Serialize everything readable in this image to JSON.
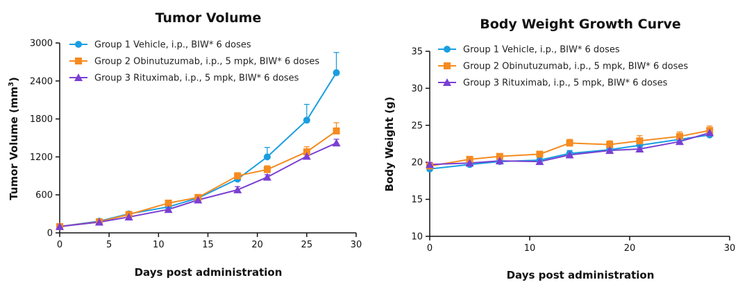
{
  "chart_data": [
    {
      "type": "line",
      "title": "Tumor Volume",
      "xlabel": "Days post administration",
      "ylabel": "Tumor Volume (mm",
      "ylabel_sup": "3",
      "ylabel_end": ")",
      "xlim": [
        0,
        30
      ],
      "ylim": [
        0,
        3000
      ],
      "xticks": [
        0,
        5,
        10,
        15,
        20,
        25,
        30
      ],
      "yticks": [
        0,
        600,
        1200,
        1800,
        2400,
        3000
      ],
      "grid": false,
      "legend_position": "top-left",
      "x": [
        0,
        4,
        7,
        11,
        14,
        18,
        21,
        25,
        28
      ],
      "series": [
        {
          "name": "Group 1 Vehicle, i.p., BIW* 6 doses",
          "color": "#1a9ee0",
          "marker": "circle",
          "values": [
            100,
            185,
            300,
            410,
            550,
            850,
            1200,
            1780,
            2530
          ],
          "errors": [
            15,
            20,
            25,
            30,
            35,
            50,
            150,
            250,
            320
          ]
        },
        {
          "name": "Group 2 Obinutuzumab, i.p., 5 mpk, BIW* 6 doses",
          "color": "#f58b1f",
          "marker": "square",
          "values": [
            100,
            175,
            290,
            470,
            560,
            900,
            1000,
            1280,
            1610
          ],
          "errors": [
            10,
            15,
            20,
            25,
            30,
            50,
            60,
            80,
            130
          ]
        },
        {
          "name": "Group 3 Rituximab, i.p., 5 mpk, BIW* 6 doses",
          "color": "#7b3fd3",
          "marker": "triangle",
          "values": [
            100,
            170,
            250,
            370,
            520,
            680,
            880,
            1210,
            1420
          ],
          "errors": [
            10,
            15,
            20,
            25,
            30,
            50,
            40,
            50,
            60
          ]
        }
      ]
    },
    {
      "type": "line",
      "title": "Body Weight Growth Curve",
      "xlabel": "Days post administration",
      "ylabel": "Body Weight (g)",
      "xlim": [
        0,
        30
      ],
      "ylim": [
        10,
        35
      ],
      "xticks": [
        0,
        10,
        20,
        30
      ],
      "yticks": [
        10,
        15,
        20,
        25,
        30,
        35
      ],
      "grid": false,
      "legend_position": "top-left",
      "x": [
        0,
        4,
        7,
        11,
        14,
        18,
        21,
        25,
        28
      ],
      "series": [
        {
          "name": "Group 1 Vehicle, i.p., BIW* 6 doses",
          "color": "#1a9ee0",
          "marker": "circle",
          "values": [
            19.1,
            19.7,
            20.1,
            20.3,
            21.2,
            21.7,
            22.3,
            23.1,
            23.7
          ],
          "errors": [
            0.3,
            0.3,
            0.3,
            0.4,
            0.4,
            0.4,
            0.4,
            0.5,
            0.5
          ]
        },
        {
          "name": "Group 2 Obinutuzumab, i.p., 5 mpk, BIW* 6 doses",
          "color": "#f58b1f",
          "marker": "square",
          "values": [
            19.5,
            20.4,
            20.8,
            21.1,
            22.6,
            22.4,
            22.9,
            23.5,
            24.3
          ],
          "errors": [
            0.3,
            0.3,
            0.3,
            0.4,
            0.5,
            0.5,
            0.7,
            0.6,
            0.6
          ]
        },
        {
          "name": "Group 3 Rituximab, i.p., 5 mpk, BIW* 6 doses",
          "color": "#7b3fd3",
          "marker": "triangle",
          "values": [
            19.7,
            19.9,
            20.2,
            20.1,
            21.0,
            21.6,
            21.8,
            22.8,
            24.0
          ],
          "errors": [
            0.3,
            0.3,
            0.3,
            0.3,
            0.4,
            0.4,
            0.4,
            0.5,
            0.5
          ]
        }
      ]
    }
  ]
}
